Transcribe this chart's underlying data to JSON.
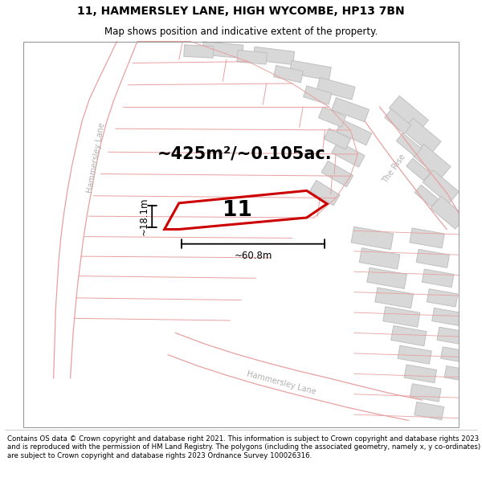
{
  "title": "11, HAMMERSLEY LANE, HIGH WYCOMBE, HP13 7BN",
  "subtitle": "Map shows position and indicative extent of the property.",
  "footer": "Contains OS data © Crown copyright and database right 2021. This information is subject to Crown copyright and database rights 2023 and is reproduced with the permission of HM Land Registry. The polygons (including the associated geometry, namely x, y co-ordinates) are subject to Crown copyright and database rights 2023 Ordnance Survey 100026316.",
  "area_label": "~425m²/~0.105ac.",
  "width_label": "~60.8m",
  "height_label": "~18.1m",
  "plot_number": "11",
  "road_line_color": "#e8a0a0",
  "building_color": "#d8d8d8",
  "building_edge": "#c0c0c0",
  "highlight_color": "#cc0000",
  "dim_color": "#000000",
  "road_label_color": "#aaaaaa",
  "title_fontsize": 10,
  "subtitle_fontsize": 8.5
}
